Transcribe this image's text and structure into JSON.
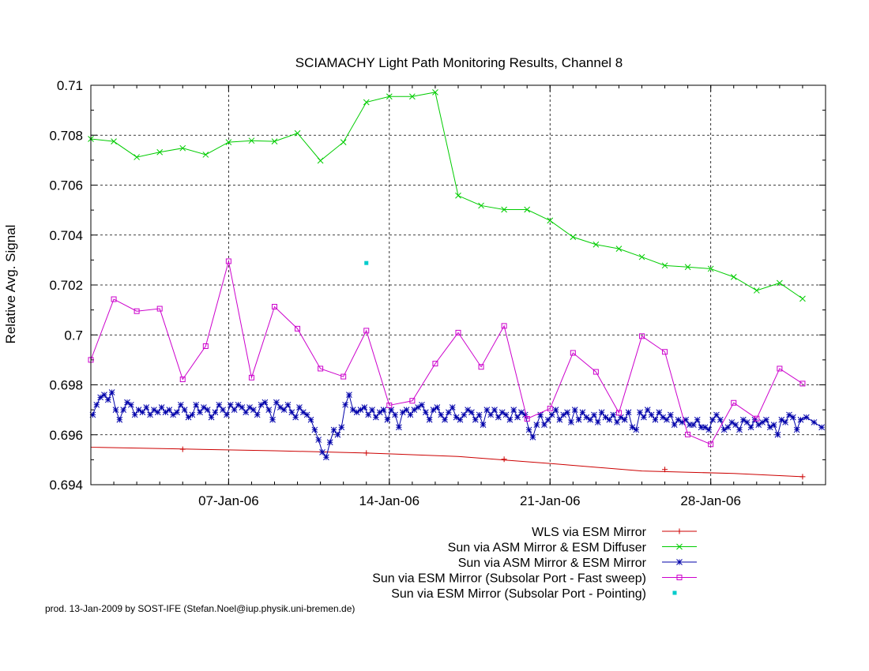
{
  "chart_data": {
    "type": "line",
    "title": "SCIAMACHY Light Path Monitoring Results, Channel 8",
    "ylabel": "Relative Avg. Signal",
    "xlabel": "",
    "x_axis": {
      "type": "date",
      "range": [
        "2006-01-01",
        "2006-02-02"
      ],
      "ticks": [
        {
          "date": "2006-01-07",
          "label": "07-Jan-06"
        },
        {
          "date": "2006-01-14",
          "label": "14-Jan-06"
        },
        {
          "date": "2006-01-21",
          "label": "21-Jan-06"
        },
        {
          "date": "2006-01-28",
          "label": "28-Jan-06"
        }
      ]
    },
    "y_axis": {
      "range": [
        0.694,
        0.71
      ],
      "ticks": [
        {
          "value": 0.694,
          "label": "0.694"
        },
        {
          "value": 0.696,
          "label": "0.696"
        },
        {
          "value": 0.698,
          "label": "0.698"
        },
        {
          "value": 0.7,
          "label": "0.7"
        },
        {
          "value": 0.702,
          "label": "0.702"
        },
        {
          "value": 0.704,
          "label": "0.704"
        },
        {
          "value": 0.706,
          "label": "0.706"
        },
        {
          "value": 0.708,
          "label": "0.708"
        },
        {
          "value": 0.71,
          "label": "0.71"
        }
      ]
    },
    "grid": true,
    "legend_position": "bottom-right",
    "series": [
      {
        "name": "WLS via ESM Mirror",
        "color": "#cc0000",
        "marker": "plus",
        "x": [
          "2006-01-01",
          "2006-01-05",
          "2006-01-09",
          "2006-01-13",
          "2006-01-17",
          "2006-01-21",
          "2006-01-25",
          "2006-01-29",
          "2006-02-01"
        ],
        "y": [
          0.6955,
          0.69543,
          0.69536,
          0.69527,
          0.69513,
          0.69485,
          0.69455,
          0.69445,
          0.69432
        ],
        "marker_x": [
          "2006-01-05",
          "2006-01-13",
          "2006-01-19",
          "2006-01-26",
          "2006-02-01"
        ],
        "marker_y": [
          0.69542,
          0.69527,
          0.69502,
          0.69461,
          0.69432
        ]
      },
      {
        "name": "Sun via ASM Mirror & ESM Diffuser",
        "color": "#00cc00",
        "marker": "x",
        "x": [
          "2006-01-01",
          "2006-01-02",
          "2006-01-03",
          "2006-01-04",
          "2006-01-05",
          "2006-01-06",
          "2006-01-07",
          "2006-01-08",
          "2006-01-09",
          "2006-01-10",
          "2006-01-11",
          "2006-01-12",
          "2006-01-13",
          "2006-01-14",
          "2006-01-15",
          "2006-01-16",
          "2006-01-17",
          "2006-01-18",
          "2006-01-19",
          "2006-01-20",
          "2006-01-21",
          "2006-01-22",
          "2006-01-23",
          "2006-01-24",
          "2006-01-25",
          "2006-01-26",
          "2006-01-27",
          "2006-01-28",
          "2006-01-29",
          "2006-01-30",
          "2006-01-31",
          "2006-02-01"
        ],
        "y": [
          0.70785,
          0.70775,
          0.70712,
          0.70732,
          0.70748,
          0.70722,
          0.70772,
          0.70778,
          0.70775,
          0.70808,
          0.70698,
          0.70772,
          0.70932,
          0.70955,
          0.70955,
          0.70972,
          0.70558,
          0.70518,
          0.70502,
          0.70502,
          0.70458,
          0.70392,
          0.70362,
          0.70345,
          0.70312,
          0.70278,
          0.70272,
          0.70265,
          0.70232,
          0.70178,
          0.70208,
          0.70145
        ]
      },
      {
        "name": "Sun via ASM Mirror & ESM Mirror",
        "color": "#0000aa",
        "marker": "star",
        "x": [
          "2006-01-01",
          "2006-01-01",
          "2006-01-01",
          "2006-01-01",
          "2006-01-01",
          "2006-01-01",
          "2006-01-02",
          "2006-01-02",
          "2006-01-02",
          "2006-01-02",
          "2006-01-02",
          "2006-01-02",
          "2006-01-03",
          "2006-01-03",
          "2006-01-03",
          "2006-01-03",
          "2006-01-03",
          "2006-01-03",
          "2006-01-04",
          "2006-01-04",
          "2006-01-04",
          "2006-01-04",
          "2006-01-04",
          "2006-01-04",
          "2006-01-05",
          "2006-01-05",
          "2006-01-05",
          "2006-01-05",
          "2006-01-05",
          "2006-01-05",
          "2006-01-06",
          "2006-01-06",
          "2006-01-06",
          "2006-01-06",
          "2006-01-06",
          "2006-01-06",
          "2006-01-07",
          "2006-01-07",
          "2006-01-07",
          "2006-01-07",
          "2006-01-07",
          "2006-01-07",
          "2006-01-08",
          "2006-01-08",
          "2006-01-08",
          "2006-01-08",
          "2006-01-08",
          "2006-01-08",
          "2006-01-09",
          "2006-01-09",
          "2006-01-09",
          "2006-01-09",
          "2006-01-09",
          "2006-01-09",
          "2006-01-10",
          "2006-01-10",
          "2006-01-10",
          "2006-01-10",
          "2006-01-10",
          "2006-01-10",
          "2006-01-11",
          "2006-01-11",
          "2006-01-11",
          "2006-01-11",
          "2006-01-11",
          "2006-01-11",
          "2006-01-12",
          "2006-01-12",
          "2006-01-12",
          "2006-01-12",
          "2006-01-12",
          "2006-01-12",
          "2006-01-13",
          "2006-01-13",
          "2006-01-13",
          "2006-01-13",
          "2006-01-13",
          "2006-01-13",
          "2006-01-14",
          "2006-01-14",
          "2006-01-14",
          "2006-01-14",
          "2006-01-14",
          "2006-01-14",
          "2006-01-15",
          "2006-01-15",
          "2006-01-15",
          "2006-01-15",
          "2006-01-15",
          "2006-01-15",
          "2006-01-16",
          "2006-01-16",
          "2006-01-16",
          "2006-01-16",
          "2006-01-16",
          "2006-01-16",
          "2006-01-17",
          "2006-01-17",
          "2006-01-17",
          "2006-01-17",
          "2006-01-17",
          "2006-01-17",
          "2006-01-18",
          "2006-01-18",
          "2006-01-18",
          "2006-01-18",
          "2006-01-18",
          "2006-01-18",
          "2006-01-19",
          "2006-01-19",
          "2006-01-19",
          "2006-01-19",
          "2006-01-19",
          "2006-01-19",
          "2006-01-20",
          "2006-01-20",
          "2006-01-20",
          "2006-01-20",
          "2006-01-20",
          "2006-01-20",
          "2006-01-21",
          "2006-01-21",
          "2006-01-21",
          "2006-01-21",
          "2006-01-21",
          "2006-01-21",
          "2006-01-22",
          "2006-01-22",
          "2006-01-22",
          "2006-01-22",
          "2006-01-22",
          "2006-01-22",
          "2006-01-23",
          "2006-01-23",
          "2006-01-23",
          "2006-01-23",
          "2006-01-23",
          "2006-01-23",
          "2006-01-24",
          "2006-01-24",
          "2006-01-24",
          "2006-01-24",
          "2006-01-24",
          "2006-01-24",
          "2006-01-25",
          "2006-01-25",
          "2006-01-25",
          "2006-01-25",
          "2006-01-25",
          "2006-01-25",
          "2006-01-26",
          "2006-01-26",
          "2006-01-26",
          "2006-01-26",
          "2006-01-26",
          "2006-01-26",
          "2006-01-27",
          "2006-01-27",
          "2006-01-27",
          "2006-01-27",
          "2006-01-27",
          "2006-01-27",
          "2006-01-28",
          "2006-01-28",
          "2006-01-28",
          "2006-01-28",
          "2006-01-28",
          "2006-01-28",
          "2006-01-29",
          "2006-01-29",
          "2006-01-29",
          "2006-01-29",
          "2006-01-29",
          "2006-01-29",
          "2006-01-30",
          "2006-01-30",
          "2006-01-30",
          "2006-01-30",
          "2006-01-30",
          "2006-01-30",
          "2006-01-31",
          "2006-01-31",
          "2006-01-31",
          "2006-01-31",
          "2006-01-31",
          "2006-01-31",
          "2006-02-01",
          "2006-02-01",
          "2006-02-01"
        ],
        "y": [
          0.6968,
          0.6972,
          0.6975,
          0.6976,
          0.6974,
          0.6977,
          0.697,
          0.6966,
          0.697,
          0.6973,
          0.6972,
          0.6968,
          0.697,
          0.6969,
          0.6971,
          0.6968,
          0.697,
          0.6969,
          0.6971,
          0.6969,
          0.697,
          0.6968,
          0.6969,
          0.6972,
          0.697,
          0.6967,
          0.6968,
          0.6972,
          0.6969,
          0.6971,
          0.697,
          0.6967,
          0.6969,
          0.6972,
          0.697,
          0.6968,
          0.6972,
          0.697,
          0.6972,
          0.6971,
          0.6969,
          0.6971,
          0.697,
          0.6968,
          0.6972,
          0.6973,
          0.697,
          0.6966,
          0.6973,
          0.6971,
          0.697,
          0.6972,
          0.6969,
          0.6967,
          0.6971,
          0.6969,
          0.6968,
          0.6966,
          0.6962,
          0.6958,
          0.6953,
          0.6951,
          0.6957,
          0.6962,
          0.696,
          0.6963,
          0.6972,
          0.6976,
          0.697,
          0.6969,
          0.697,
          0.6971,
          0.6968,
          0.697,
          0.6967,
          0.6969,
          0.697,
          0.6966,
          0.697,
          0.6968,
          0.6963,
          0.6969,
          0.697,
          0.6968,
          0.697,
          0.6971,
          0.6972,
          0.6969,
          0.6966,
          0.697,
          0.6971,
          0.6968,
          0.6966,
          0.6969,
          0.6971,
          0.6967,
          0.6966,
          0.6968,
          0.697,
          0.6969,
          0.6966,
          0.6968,
          0.6964,
          0.697,
          0.6968,
          0.697,
          0.6967,
          0.6969,
          0.6968,
          0.6966,
          0.697,
          0.6967,
          0.6969,
          0.6968,
          0.6962,
          0.6959,
          0.6964,
          0.6968,
          0.6964,
          0.6966,
          0.6968,
          0.697,
          0.6966,
          0.6968,
          0.6969,
          0.6965,
          0.697,
          0.6966,
          0.6969,
          0.6967,
          0.6966,
          0.6968,
          0.6965,
          0.6969,
          0.6967,
          0.6966,
          0.6968,
          0.6965,
          0.6967,
          0.6966,
          0.6969,
          0.6963,
          0.6962,
          0.6969,
          0.6967,
          0.697,
          0.6968,
          0.6966,
          0.6969,
          0.6967,
          0.6966,
          0.6968,
          0.6964,
          0.6966,
          0.6965,
          0.6966,
          0.6964,
          0.6964,
          0.6966,
          0.6963,
          0.6963,
          0.6962,
          0.6966,
          0.6968,
          0.6966,
          0.6962,
          0.6963,
          0.6965,
          0.6964,
          0.6962,
          0.6966,
          0.6965,
          0.6963,
          0.6966,
          0.6964,
          0.6965,
          0.6966,
          0.6963,
          0.6964,
          0.696,
          0.6966,
          0.6965,
          0.6968,
          0.6967,
          0.6962,
          0.6966,
          0.6967,
          0.6965,
          0.6963
        ]
      },
      {
        "name": "Sun via ESM Mirror (Subsolar Port - Fast sweep)",
        "color": "#cc00cc",
        "marker": "square",
        "x": [
          "2006-01-01",
          "2006-01-02",
          "2006-01-03",
          "2006-01-04",
          "2006-01-05",
          "2006-01-06",
          "2006-01-07",
          "2006-01-08",
          "2006-01-09",
          "2006-01-10",
          "2006-01-11",
          "2006-01-12",
          "2006-01-13",
          "2006-01-14",
          "2006-01-15",
          "2006-01-16",
          "2006-01-17",
          "2006-01-18",
          "2006-01-19",
          "2006-01-20",
          "2006-01-21",
          "2006-01-22",
          "2006-01-23",
          "2006-01-24",
          "2006-01-25",
          "2006-01-26",
          "2006-01-27",
          "2006-01-28",
          "2006-01-29",
          "2006-01-30",
          "2006-01-31",
          "2006-02-01"
        ],
        "y": [
          0.699,
          0.70143,
          0.70095,
          0.70105,
          0.69822,
          0.69955,
          0.70295,
          0.69829,
          0.70113,
          0.70025,
          0.69865,
          0.69833,
          0.70017,
          0.69718,
          0.69736,
          0.69885,
          0.70009,
          0.69872,
          0.70036,
          0.69664,
          0.69705,
          0.69928,
          0.69852,
          0.69688,
          0.69995,
          0.69932,
          0.69601,
          0.69562,
          0.69728,
          0.69665,
          0.69865,
          0.69805
        ]
      },
      {
        "name": "Sun via ESM Mirror (Subsolar Port - Pointing)",
        "color": "#00cccc",
        "marker": "filled-square",
        "x": [
          "2006-01-13"
        ],
        "y": [
          0.70288
        ]
      }
    ],
    "footer": "prod. 13-Jan-2009 by SOST-IFE (Stefan.Noel@iup.physik.uni-bremen.de)"
  }
}
